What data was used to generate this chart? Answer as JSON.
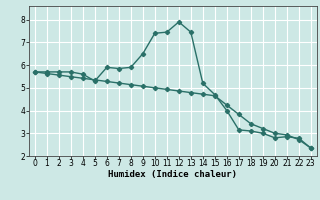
{
  "xlabel": "Humidex (Indice chaleur)",
  "ylabel": "",
  "background_color": "#cde8e5",
  "grid_color": "#ffffff",
  "line_color": "#2a7068",
  "xlim": [
    -0.5,
    23.5
  ],
  "ylim": [
    2.0,
    8.6
  ],
  "xticks": [
    0,
    1,
    2,
    3,
    4,
    5,
    6,
    7,
    8,
    9,
    10,
    11,
    12,
    13,
    14,
    15,
    16,
    17,
    18,
    19,
    20,
    21,
    22,
    23
  ],
  "yticks": [
    2,
    3,
    4,
    5,
    6,
    7,
    8
  ],
  "series1_x": [
    0,
    1,
    2,
    3,
    4,
    5,
    6,
    7,
    8,
    9,
    10,
    11,
    12,
    13,
    14,
    15,
    16,
    17,
    18,
    19,
    20,
    21,
    22,
    23
  ],
  "series1_y": [
    5.7,
    5.7,
    5.7,
    5.7,
    5.6,
    5.3,
    5.9,
    5.85,
    5.9,
    6.5,
    7.4,
    7.45,
    7.9,
    7.45,
    5.2,
    4.7,
    4.0,
    3.15,
    3.1,
    3.0,
    2.8,
    2.85,
    2.78,
    2.35
  ],
  "series2_x": [
    0,
    1,
    2,
    3,
    4,
    5,
    6,
    7,
    8,
    9,
    10,
    11,
    12,
    13,
    14,
    15,
    16,
    17,
    18,
    19,
    20,
    21,
    22,
    23
  ],
  "series2_y": [
    5.7,
    5.63,
    5.56,
    5.49,
    5.42,
    5.35,
    5.28,
    5.21,
    5.14,
    5.07,
    5.0,
    4.93,
    4.86,
    4.79,
    4.72,
    4.65,
    4.24,
    3.83,
    3.42,
    3.21,
    3.0,
    2.93,
    2.72,
    2.35
  ],
  "marker": "D",
  "markersize": 2.2,
  "linewidth": 1.0,
  "tick_fontsize": 5.5,
  "xlabel_fontsize": 6.5
}
